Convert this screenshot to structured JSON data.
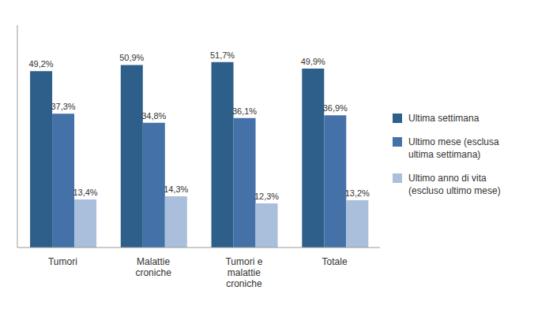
{
  "chart_data": {
    "type": "bar",
    "categories": [
      "Tumori",
      "Malattie\ncroniche",
      "Tumori e\nmalattie\ncroniche",
      "Totale"
    ],
    "series": [
      {
        "name": "Ultima settimana",
        "color": "#2E5F8A",
        "values": [
          49.2,
          50.9,
          51.7,
          49.9
        ],
        "value_labels": [
          "49,2%",
          "50,9%",
          "51,7%",
          "49,9%"
        ]
      },
      {
        "name": "Ultimo mese (esclusa\nultima settimana)",
        "color": "#4472A8",
        "values": [
          37.3,
          34.8,
          36.1,
          36.9
        ],
        "value_labels": [
          "37,3%",
          "34,8%",
          "36,1%",
          "36,9%"
        ]
      },
      {
        "name": "Ultimo anno di vita\n(escluso ultimo mese)",
        "color": "#AABFDB",
        "values": [
          13.4,
          14.3,
          12.3,
          13.2
        ],
        "value_labels": [
          "13,4%",
          "14,3%",
          "12,3%",
          "13,2%"
        ]
      }
    ],
    "ylim": [
      0,
      62
    ],
    "yticks": [],
    "grid": false,
    "legend": "right",
    "data_labels": true,
    "tick_labels": "x"
  }
}
